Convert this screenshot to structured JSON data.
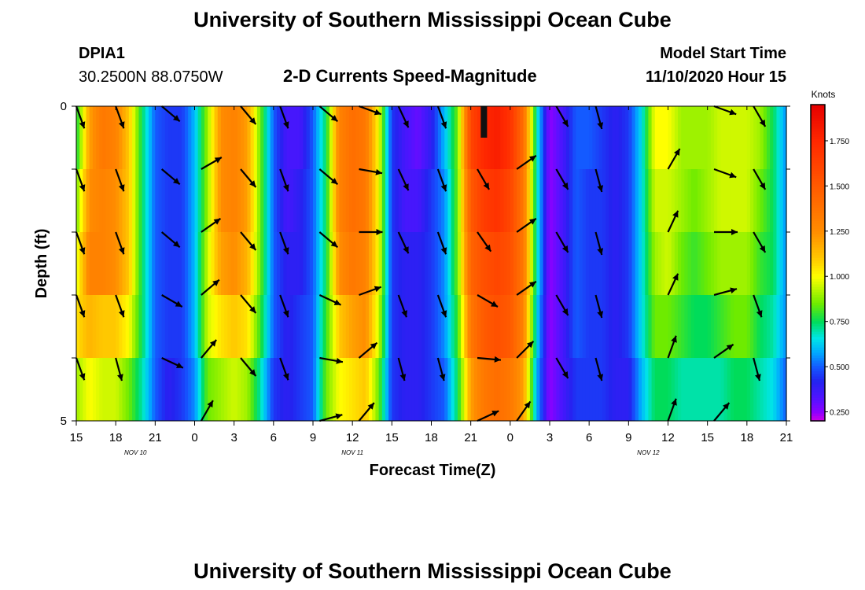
{
  "header": {
    "title": "University of Southern Mississippi Ocean Cube",
    "footer_title": "University of Southern Mississippi Ocean Cube",
    "station_id": "DPIA1",
    "station_coords": "30.2500N 88.0750W",
    "plot_heading": "2-D Currents Speed-Magnitude",
    "model_start_label": "Model Start Time",
    "model_start_value": "11/10/2020 Hour 15"
  },
  "chart_data": {
    "type": "heatmap",
    "title": "2-D Currents Speed-Magnitude",
    "xlabel": "Forecast Time(Z)",
    "ylabel": "Depth (ft)",
    "x_tick_labels": [
      "15",
      "18",
      "21",
      "0",
      "3",
      "6",
      "9",
      "12",
      "15",
      "18",
      "21",
      "0",
      "3",
      "6",
      "9",
      "12",
      "15",
      "18",
      "21"
    ],
    "date_labels": [
      {
        "text": "NOV  10",
        "hour": 4.5
      },
      {
        "text": "NOV  11",
        "hour": 21
      },
      {
        "text": "NOV  12",
        "hour": 43.5
      }
    ],
    "x_range_hours": [
      0,
      54
    ],
    "y_tick_labels": [
      "0",
      "5"
    ],
    "depth_range_ft": [
      0,
      5
    ],
    "depth_levels": 5,
    "colorbar": {
      "unit": "Knots",
      "range": [
        0.2,
        1.95
      ],
      "ticks": [
        "0.250",
        "0.500",
        "0.750",
        "1.000",
        "1.250",
        "1.500",
        "1.750"
      ],
      "tick_values": [
        0.25,
        0.5,
        0.75,
        1.0,
        1.25,
        1.5,
        1.75
      ]
    },
    "speed_keypoints": [
      {
        "t": 0,
        "v": [
          0.75,
          0.85,
          0.95,
          1.05,
          0.9,
          0.7
        ]
      },
      {
        "t": 1,
        "v": [
          1.2,
          1.25,
          1.3,
          1.15,
          1.0,
          0.75
        ]
      },
      {
        "t": 2,
        "v": [
          1.35,
          1.3,
          1.3,
          1.1,
          0.95,
          0.75
        ]
      },
      {
        "t": 3,
        "v": [
          1.3,
          1.25,
          1.25,
          1.1,
          0.95,
          0.7
        ]
      },
      {
        "t": 4,
        "v": [
          1.1,
          1.1,
          1.1,
          1.0,
          0.85,
          0.7
        ]
      },
      {
        "t": 5,
        "v": [
          0.75,
          0.75,
          0.75,
          0.75,
          0.7,
          0.6
        ]
      },
      {
        "t": 6,
        "v": [
          0.5,
          0.5,
          0.5,
          0.5,
          0.5,
          0.45
        ]
      },
      {
        "t": 7,
        "v": [
          0.45,
          0.45,
          0.45,
          0.45,
          0.4,
          0.35
        ]
      },
      {
        "t": 8,
        "v": [
          0.45,
          0.45,
          0.45,
          0.45,
          0.45,
          0.4
        ]
      },
      {
        "t": 9,
        "v": [
          0.6,
          0.6,
          0.6,
          0.6,
          0.55,
          0.5
        ]
      },
      {
        "t": 10,
        "v": [
          0.9,
          0.9,
          0.95,
          0.95,
          0.85,
          0.7
        ]
      },
      {
        "t": 11,
        "v": [
          1.25,
          1.25,
          1.2,
          1.05,
          0.9,
          0.7
        ]
      },
      {
        "t": 12,
        "v": [
          1.3,
          1.3,
          1.25,
          1.1,
          0.95,
          0.75
        ]
      },
      {
        "t": 13,
        "v": [
          1.2,
          1.2,
          1.15,
          1.05,
          0.9,
          0.7
        ]
      },
      {
        "t": 14,
        "v": [
          0.85,
          0.85,
          0.85,
          0.8,
          0.7,
          0.6
        ]
      },
      {
        "t": 15,
        "v": [
          0.5,
          0.5,
          0.5,
          0.5,
          0.45,
          0.4
        ]
      },
      {
        "t": 16,
        "v": [
          0.35,
          0.35,
          0.4,
          0.4,
          0.4,
          0.35
        ]
      },
      {
        "t": 17,
        "v": [
          0.35,
          0.4,
          0.4,
          0.45,
          0.45,
          0.45
        ]
      },
      {
        "t": 18,
        "v": [
          0.5,
          0.5,
          0.5,
          0.5,
          0.5,
          0.45
        ]
      },
      {
        "t": 19,
        "v": [
          0.75,
          0.75,
          0.75,
          0.8,
          0.85,
          0.75
        ]
      },
      {
        "t": 20,
        "v": [
          1.3,
          1.3,
          1.25,
          1.1,
          1.0,
          0.8
        ]
      },
      {
        "t": 21,
        "v": [
          1.4,
          1.4,
          1.35,
          1.2,
          1.05,
          0.85
        ]
      },
      {
        "t": 22,
        "v": [
          1.35,
          1.35,
          1.3,
          1.25,
          1.1,
          0.9
        ]
      },
      {
        "t": 23,
        "v": [
          1.0,
          1.0,
          1.0,
          0.95,
          0.85,
          0.75
        ]
      },
      {
        "t": 24,
        "v": [
          0.45,
          0.45,
          0.45,
          0.45,
          0.45,
          0.45
        ]
      },
      {
        "t": 25,
        "v": [
          0.35,
          0.35,
          0.4,
          0.4,
          0.4,
          0.4
        ]
      },
      {
        "t": 26,
        "v": [
          0.3,
          0.35,
          0.4,
          0.4,
          0.4,
          0.4
        ]
      },
      {
        "t": 27,
        "v": [
          0.4,
          0.45,
          0.45,
          0.45,
          0.45,
          0.4
        ]
      },
      {
        "t": 28,
        "v": [
          0.6,
          0.55,
          0.55,
          0.55,
          0.5,
          0.45
        ]
      },
      {
        "t": 29,
        "v": [
          0.85,
          0.85,
          0.85,
          0.8,
          0.75,
          0.65
        ]
      },
      {
        "t": 30,
        "v": [
          1.6,
          1.5,
          1.45,
          1.35,
          1.2,
          1.0
        ]
      },
      {
        "t": 31,
        "v": [
          1.75,
          1.65,
          1.55,
          1.5,
          1.35,
          1.15
        ]
      },
      {
        "t": 32,
        "v": [
          1.8,
          1.7,
          1.6,
          1.55,
          1.4,
          1.2
        ]
      },
      {
        "t": 33,
        "v": [
          1.7,
          1.6,
          1.55,
          1.5,
          1.35,
          1.15
        ]
      },
      {
        "t": 34,
        "v": [
          1.4,
          1.35,
          1.35,
          1.3,
          1.2,
          1.05
        ]
      },
      {
        "t": 35,
        "v": [
          0.7,
          0.7,
          0.7,
          0.65,
          0.6,
          0.55
        ]
      },
      {
        "t": 36,
        "v": [
          0.25,
          0.25,
          0.25,
          0.25,
          0.25,
          0.25
        ]
      },
      {
        "t": 37,
        "v": [
          0.35,
          0.35,
          0.35,
          0.35,
          0.35,
          0.35
        ]
      },
      {
        "t": 38,
        "v": [
          0.5,
          0.5,
          0.5,
          0.5,
          0.45,
          0.45
        ]
      },
      {
        "t": 39,
        "v": [
          0.5,
          0.45,
          0.45,
          0.45,
          0.45,
          0.45
        ]
      },
      {
        "t": 40,
        "v": [
          0.45,
          0.45,
          0.45,
          0.45,
          0.45,
          0.4
        ]
      },
      {
        "t": 41,
        "v": [
          0.4,
          0.4,
          0.4,
          0.4,
          0.4,
          0.35
        ]
      },
      {
        "t": 42,
        "v": [
          0.45,
          0.45,
          0.45,
          0.45,
          0.4,
          0.35
        ]
      },
      {
        "t": 43,
        "v": [
          0.65,
          0.65,
          0.65,
          0.65,
          0.6,
          0.55
        ]
      },
      {
        "t": 44,
        "v": [
          1.0,
          0.95,
          0.9,
          0.85,
          0.75,
          0.65
        ]
      },
      {
        "t": 45,
        "v": [
          1.0,
          0.95,
          0.95,
          0.85,
          0.75,
          0.65
        ]
      },
      {
        "t": 46,
        "v": [
          0.9,
          0.9,
          0.85,
          0.8,
          0.7,
          0.6
        ]
      },
      {
        "t": 47,
        "v": [
          0.9,
          0.85,
          0.8,
          0.75,
          0.7,
          0.6
        ]
      },
      {
        "t": 48,
        "v": [
          0.9,
          0.9,
          0.85,
          0.75,
          0.7,
          0.6
        ]
      },
      {
        "t": 49,
        "v": [
          0.95,
          0.95,
          0.9,
          0.8,
          0.7,
          0.6
        ]
      },
      {
        "t": 50,
        "v": [
          0.95,
          0.95,
          0.9,
          0.85,
          0.75,
          0.6
        ]
      },
      {
        "t": 51,
        "v": [
          0.95,
          0.95,
          0.9,
          0.85,
          0.75,
          0.6
        ]
      },
      {
        "t": 52,
        "v": [
          0.9,
          0.85,
          0.8,
          0.75,
          0.7,
          0.6
        ]
      },
      {
        "t": 53,
        "v": [
          0.75,
          0.75,
          0.75,
          0.7,
          0.65,
          0.55
        ]
      },
      {
        "t": 54,
        "v": [
          0.55,
          0.55,
          0.55,
          0.55,
          0.5,
          0.5
        ]
      }
    ],
    "arrow_columns": [
      {
        "t": 0,
        "dirs": [
          160,
          160,
          160,
          160,
          160,
          null
        ]
      },
      {
        "t": 3,
        "dirs": [
          160,
          160,
          160,
          160,
          165,
          null
        ]
      },
      {
        "t": 6.5,
        "dirs": [
          130,
          130,
          130,
          120,
          115,
          null
        ]
      },
      {
        "t": 9.5,
        "dirs": [
          null,
          60,
          55,
          50,
          40,
          30
        ]
      },
      {
        "t": 12.5,
        "dirs": [
          140,
          140,
          140,
          140,
          140,
          null
        ]
      },
      {
        "t": 15.5,
        "dirs": [
          160,
          160,
          160,
          160,
          160,
          null
        ]
      },
      {
        "t": 18.5,
        "dirs": [
          130,
          130,
          130,
          115,
          100,
          75
        ]
      },
      {
        "t": 21.5,
        "dirs": [
          110,
          100,
          90,
          70,
          50,
          40
        ]
      },
      {
        "t": 24.5,
        "dirs": [
          155,
          155,
          155,
          160,
          165,
          null
        ]
      },
      {
        "t": 27.5,
        "dirs": [
          160,
          160,
          160,
          160,
          165,
          null
        ]
      },
      {
        "t": 30.5,
        "dirs": [
          null,
          150,
          145,
          120,
          95,
          65
        ]
      },
      {
        "t": 33.5,
        "dirs": [
          null,
          55,
          55,
          55,
          45,
          35
        ]
      },
      {
        "t": 36.5,
        "dirs": [
          150,
          150,
          150,
          150,
          150,
          null
        ]
      },
      {
        "t": 39.5,
        "dirs": [
          165,
          165,
          165,
          165,
          165,
          null
        ]
      },
      {
        "t": 45,
        "dirs": [
          null,
          30,
          25,
          25,
          20,
          20
        ]
      },
      {
        "t": 48.5,
        "dirs": [
          110,
          110,
          90,
          75,
          55,
          40
        ]
      },
      {
        "t": 51.5,
        "dirs": [
          150,
          150,
          150,
          160,
          165,
          null
        ]
      }
    ],
    "dry_bar": {
      "t": 31,
      "depth_ft": [
        0,
        0.5
      ]
    }
  }
}
